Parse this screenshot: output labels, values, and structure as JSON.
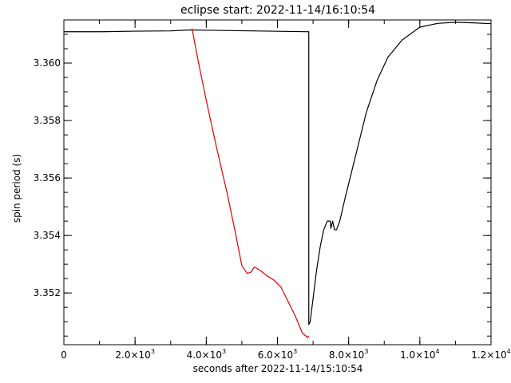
{
  "chart_data": {
    "type": "line",
    "title": "eclipse start: 2022-11-14/16:10:54",
    "xlabel": "seconds after 2022-11-14/15:10:54",
    "ylabel": "spin period (s)",
    "xlim": [
      0,
      12000
    ],
    "ylim": [
      3.3502,
      3.3615
    ],
    "x_ticks": [
      {
        "value": 0,
        "mant": "0",
        "exp": ""
      },
      {
        "value": 2000,
        "mant": "2.0×10",
        "exp": "3"
      },
      {
        "value": 4000,
        "mant": "4.0×10",
        "exp": "3"
      },
      {
        "value": 6000,
        "mant": "6.0×10",
        "exp": "3"
      },
      {
        "value": 8000,
        "mant": "8.0×10",
        "exp": "3"
      },
      {
        "value": 10000,
        "mant": "1.0×10",
        "exp": "4"
      },
      {
        "value": 12000,
        "mant": "1.2×10",
        "exp": "4"
      }
    ],
    "x_minor_step": 1000,
    "y_ticks": [
      {
        "value": 3.352,
        "label": "3.352"
      },
      {
        "value": 3.354,
        "label": "3.354"
      },
      {
        "value": 3.356,
        "label": "3.356"
      },
      {
        "value": 3.358,
        "label": "3.358"
      },
      {
        "value": 3.36,
        "label": "3.360"
      }
    ],
    "y_minor_step": 0.0005,
    "grid": false,
    "series": [
      {
        "color": "#000000",
        "points": [
          [
            0,
            3.36109
          ],
          [
            1000,
            3.36109
          ],
          [
            2000,
            3.36111
          ],
          [
            3000,
            3.36112
          ],
          [
            3500,
            3.36115
          ],
          [
            3600,
            3.36115
          ],
          [
            6880,
            3.36109
          ],
          [
            6880,
            3.3509
          ],
          [
            6920,
            3.351
          ],
          [
            7000,
            3.3518
          ],
          [
            7100,
            3.3528
          ],
          [
            7200,
            3.3536
          ],
          [
            7300,
            3.3542
          ],
          [
            7400,
            3.3545
          ],
          [
            7480,
            3.3545
          ],
          [
            7500,
            3.35425
          ],
          [
            7550,
            3.3545
          ],
          [
            7600,
            3.3542
          ],
          [
            7660,
            3.3542
          ],
          [
            7750,
            3.3545
          ],
          [
            7900,
            3.3553
          ],
          [
            8100,
            3.3563
          ],
          [
            8300,
            3.3573
          ],
          [
            8500,
            3.3583
          ],
          [
            8800,
            3.3594
          ],
          [
            9100,
            3.3602
          ],
          [
            9500,
            3.3608
          ],
          [
            10000,
            3.36125
          ],
          [
            10500,
            3.36138
          ],
          [
            11000,
            3.36142
          ],
          [
            11500,
            3.3614
          ],
          [
            12000,
            3.36137
          ]
        ]
      },
      {
        "color": "#dd0000",
        "points": [
          [
            3600,
            3.3612
          ],
          [
            3800,
            3.3599
          ],
          [
            4000,
            3.3587
          ],
          [
            4300,
            3.357
          ],
          [
            4600,
            3.3554
          ],
          [
            4800,
            3.3542
          ],
          [
            5000,
            3.35295
          ],
          [
            5150,
            3.35268
          ],
          [
            5250,
            3.35272
          ],
          [
            5350,
            3.3529
          ],
          [
            5500,
            3.3528
          ],
          [
            5700,
            3.3526
          ],
          [
            5900,
            3.35245
          ],
          [
            6100,
            3.3522
          ],
          [
            6300,
            3.3517
          ],
          [
            6500,
            3.3512
          ],
          [
            6700,
            3.3506
          ],
          [
            6850,
            3.35045
          ],
          [
            6880,
            3.3505
          ]
        ]
      }
    ]
  }
}
